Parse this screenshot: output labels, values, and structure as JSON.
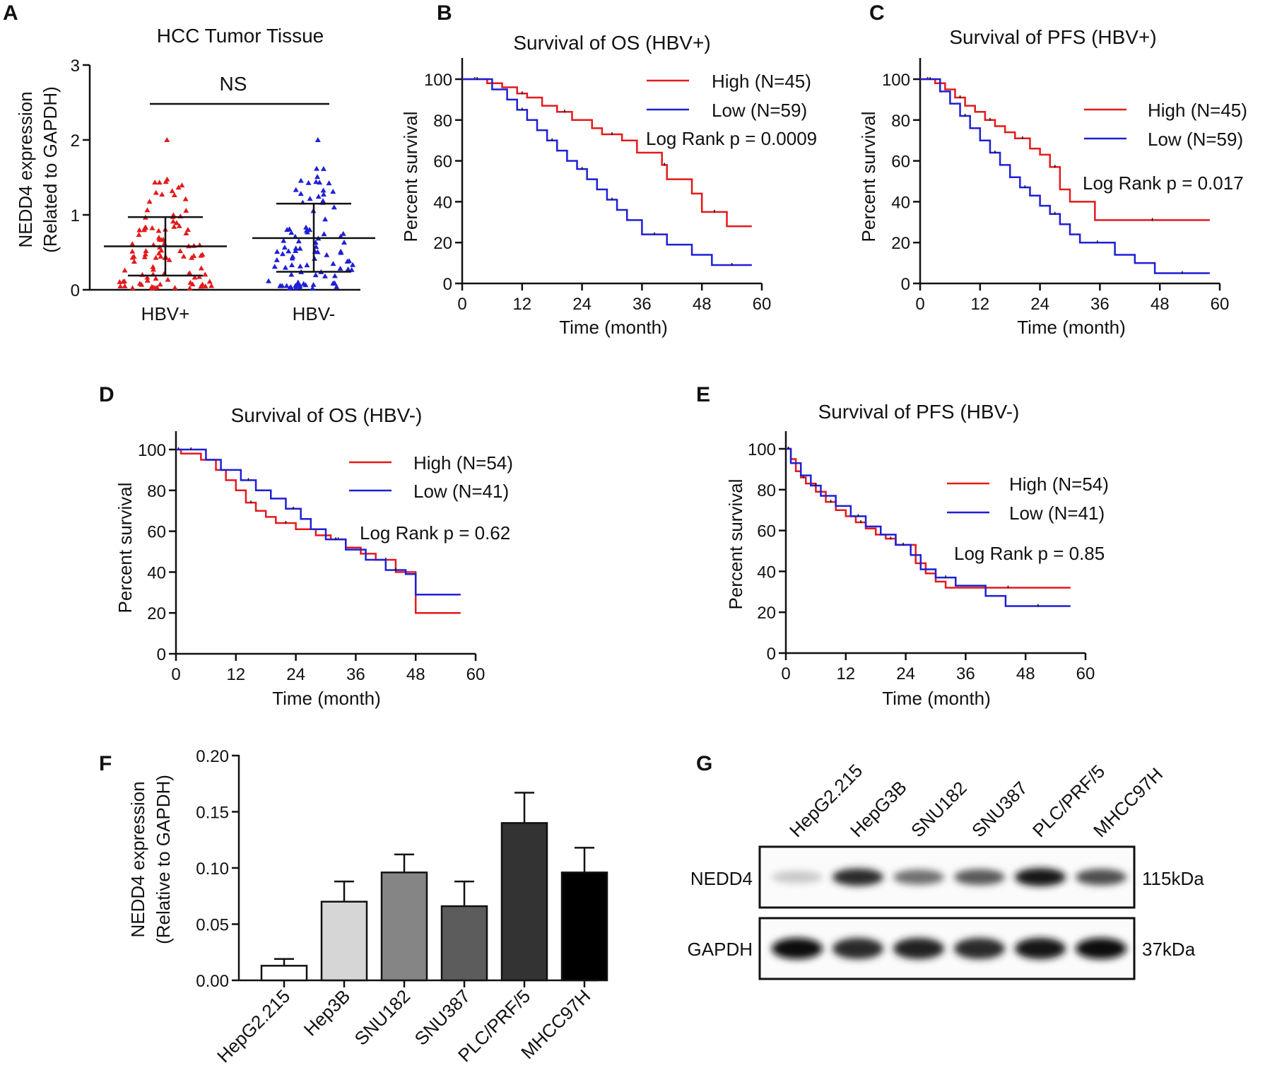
{
  "figure": {
    "panels": {
      "A": "A",
      "B": "B",
      "C": "C",
      "D": "D",
      "E": "E",
      "F": "F",
      "G": "G"
    }
  },
  "colors": {
    "high": "#e31a1c",
    "low": "#1f1fd6",
    "axis": "#111111"
  },
  "chart_data": [
    {
      "id": "A",
      "type": "scatter",
      "title": "HCC Tumor Tissue",
      "ylabel_line1": "NEDD4 expression",
      "ylabel_line2": "(Related to GAPDH)",
      "ylim": [
        0,
        3
      ],
      "yticks": [
        0,
        1,
        2,
        3
      ],
      "categories": [
        "HBV+",
        "HBV-"
      ],
      "annotation": "NS",
      "groups": [
        {
          "name": "HBV+",
          "mean": 0.58,
          "sd_low": 0.19,
          "sd_high": 0.97,
          "max": 2.0,
          "n": 104,
          "color": "#e31a1c",
          "marker": "triangle"
        },
        {
          "name": "HBV-",
          "mean": 0.69,
          "sd_low": 0.24,
          "sd_high": 1.15,
          "max": 2.0,
          "n": 95,
          "color": "#1f1fd6",
          "marker": "triangle"
        }
      ]
    },
    {
      "id": "B",
      "type": "line",
      "title": "Survival of OS (HBV+)",
      "xlabel": "Time (month)",
      "ylabel": "Percent survival",
      "xlim": [
        0,
        60
      ],
      "ylim": [
        0,
        100
      ],
      "xticks": [
        0,
        12,
        24,
        36,
        48,
        60
      ],
      "yticks": [
        0,
        20,
        40,
        60,
        80,
        100
      ],
      "legend": [
        "High (N=45)",
        "Low (N=59)"
      ],
      "annotation": "Log Rank p = 0.0009",
      "series": [
        {
          "name": "High (N=45)",
          "color": "#e31a1c",
          "x": [
            0,
            5,
            8,
            11,
            13,
            16,
            19,
            22,
            26,
            28,
            32,
            35,
            40,
            41,
            46,
            48,
            53,
            58
          ],
          "y": [
            100,
            98,
            96,
            93,
            91,
            87,
            84,
            80,
            76,
            73,
            70,
            64,
            58,
            51,
            44,
            35,
            28,
            28
          ]
        },
        {
          "name": "Low (N=59)",
          "color": "#1f1fd6",
          "x": [
            0,
            6,
            9,
            11,
            13,
            15,
            17,
            19,
            21,
            23,
            25,
            27,
            29,
            31,
            33,
            36,
            41,
            46,
            50,
            58
          ],
          "y": [
            100,
            95,
            90,
            85,
            80,
            75,
            70,
            65,
            60,
            56,
            51,
            46,
            41,
            36,
            31,
            24,
            19,
            14,
            9,
            9
          ]
        }
      ]
    },
    {
      "id": "C",
      "type": "line",
      "title": "Survival of PFS (HBV+)",
      "xlabel": "Time (month)",
      "ylabel": "Percent survival",
      "xlim": [
        0,
        60
      ],
      "ylim": [
        0,
        100
      ],
      "xticks": [
        0,
        12,
        24,
        36,
        48,
        60
      ],
      "yticks": [
        0,
        20,
        40,
        60,
        80,
        100
      ],
      "legend": [
        "High (N=45)",
        "Low (N=59)"
      ],
      "annotation": "Log Rank p = 0.017",
      "series": [
        {
          "name": "High (N=45)",
          "color": "#e31a1c",
          "x": [
            0,
            3,
            5,
            7,
            9,
            11,
            13,
            15,
            17,
            19,
            22,
            24,
            26,
            28,
            30,
            35,
            58
          ],
          "y": [
            100,
            98,
            95,
            91,
            87,
            84,
            80,
            77,
            74,
            71,
            66,
            63,
            57,
            46,
            40,
            31,
            31
          ]
        },
        {
          "name": "Low (N=59)",
          "color": "#1f1fd6",
          "x": [
            0,
            4,
            6,
            8,
            10,
            12,
            14,
            16,
            18,
            20,
            22,
            24,
            26,
            28,
            30,
            32,
            39,
            43,
            47,
            58
          ],
          "y": [
            100,
            94,
            88,
            82,
            76,
            70,
            64,
            58,
            52,
            47,
            43,
            38,
            34,
            29,
            24,
            20,
            14,
            10,
            5,
            5
          ]
        }
      ]
    },
    {
      "id": "D",
      "type": "line",
      "title": "Survival of OS (HBV-)",
      "xlabel": "Time (month)",
      "ylabel": "Percent survival",
      "xlim": [
        0,
        60
      ],
      "ylim": [
        0,
        100
      ],
      "xticks": [
        0,
        12,
        24,
        36,
        48,
        60
      ],
      "yticks": [
        0,
        20,
        40,
        60,
        80,
        100
      ],
      "legend": [
        "High (N=54)",
        "Low (N=41)"
      ],
      "annotation": "Log Rank p = 0.62",
      "series": [
        {
          "name": "High (N=54)",
          "color": "#e31a1c",
          "x": [
            0,
            1,
            5,
            8,
            10,
            12,
            14,
            16,
            18,
            20,
            24,
            28,
            31,
            34,
            37,
            40,
            44,
            48,
            57
          ],
          "y": [
            100,
            98,
            95,
            90,
            85,
            80,
            74,
            70,
            67,
            64,
            61,
            58,
            56,
            52,
            49,
            46,
            40,
            20,
            20
          ]
        },
        {
          "name": "Low (N=41)",
          "color": "#1f1fd6",
          "x": [
            0,
            6,
            9,
            13,
            16,
            19,
            22,
            25,
            27,
            30,
            34,
            38,
            42,
            46,
            48,
            57
          ],
          "y": [
            100,
            95,
            90,
            85,
            80,
            76,
            71,
            66,
            61,
            56,
            51,
            46,
            41,
            39,
            29,
            29
          ]
        }
      ]
    },
    {
      "id": "E",
      "type": "line",
      "title": "Survival of PFS  (HBV-)",
      "xlabel": "Time (month)",
      "ylabel": "Percent survival",
      "xlim": [
        0,
        60
      ],
      "ylim": [
        0,
        100
      ],
      "xticks": [
        0,
        12,
        24,
        36,
        48,
        60
      ],
      "yticks": [
        0,
        20,
        40,
        60,
        80,
        100
      ],
      "legend": [
        "High (N=54)",
        "Low (N=41)"
      ],
      "annotation": "Log Rank p = 0.85",
      "series": [
        {
          "name": "High (N=54)",
          "color": "#e31a1c",
          "x": [
            0,
            1,
            2,
            3,
            4,
            6,
            8,
            10,
            12,
            14,
            16,
            18,
            20,
            22,
            24,
            26,
            28,
            30,
            32,
            57
          ],
          "y": [
            100,
            95,
            89,
            86,
            83,
            79,
            74,
            70,
            67,
            64,
            61,
            58,
            56,
            53,
            53,
            44,
            39,
            35,
            32,
            32
          ]
        },
        {
          "name": "Low (N=41)",
          "color": "#1f1fd6",
          "x": [
            0,
            1,
            3,
            5,
            7,
            10,
            13,
            16,
            19,
            22,
            25,
            27,
            30,
            34,
            40,
            44,
            57
          ],
          "y": [
            100,
            93,
            87,
            82,
            77,
            72,
            67,
            62,
            58,
            53,
            48,
            41,
            37,
            33,
            28,
            23,
            23
          ]
        }
      ]
    },
    {
      "id": "F",
      "type": "bar",
      "ylabel_line1": "NEDD4 expression",
      "ylabel_line2": "(Relative to GAPDH)",
      "ylim": [
        0,
        0.2
      ],
      "yticks": [
        "0.00",
        "0.05",
        "0.10",
        "0.15",
        "0.20"
      ],
      "categories": [
        "HepG2.215",
        "Hep3B",
        "SNU182",
        "SNU387",
        "PLC/PRF/5",
        "MHCC97H"
      ],
      "values": [
        0.013,
        0.07,
        0.096,
        0.066,
        0.14,
        0.096
      ],
      "errors": [
        0.006,
        0.018,
        0.016,
        0.022,
        0.027,
        0.022
      ],
      "fills": [
        "#ffffff",
        "#d6d6d6",
        "#858585",
        "#5c5c5c",
        "#333333",
        "#000000"
      ]
    }
  ],
  "western_blot": {
    "lanes": [
      "HepG2.215",
      "HepG3B",
      "SNU182",
      "SNU387",
      "PLC/PRF/5",
      "MHCC97H"
    ],
    "rows": [
      {
        "label": "NEDD4",
        "size": "115kDa",
        "intensity": [
          0.15,
          0.85,
          0.55,
          0.65,
          0.95,
          0.7
        ]
      },
      {
        "label": "GAPDH",
        "size": "37kDa",
        "intensity": [
          1.0,
          0.85,
          0.9,
          0.85,
          0.95,
          1.0
        ]
      }
    ]
  }
}
